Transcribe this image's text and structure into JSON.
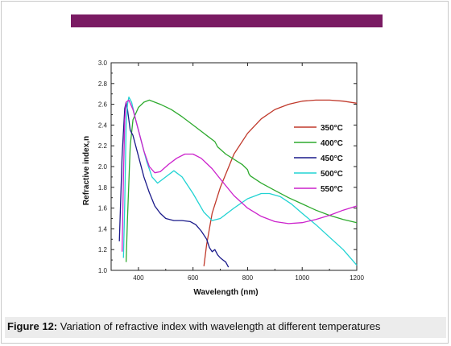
{
  "header": {
    "bar_color": "#7a1b63"
  },
  "caption": {
    "label": "Figure 12:",
    "text": " Variation of refractive index with wavelength at different temperatures"
  },
  "chart_data": {
    "type": "line",
    "xlabel": "Wavelength  (nm)",
    "ylabel": "Refractive index,n",
    "xlim": [
      300,
      1200
    ],
    "ylim": [
      1.0,
      3.0
    ],
    "x_ticks": [
      400,
      600,
      800,
      1000,
      1200
    ],
    "y_ticks": [
      1.0,
      1.2,
      1.4,
      1.6,
      1.8,
      2.0,
      2.2,
      2.4,
      2.6,
      2.8,
      3.0
    ],
    "grid": false,
    "legend_position": "right",
    "series": [
      {
        "name": "350°C",
        "color": "#c0392b",
        "points": [
          [
            640,
            1.04
          ],
          [
            650,
            1.25
          ],
          [
            670,
            1.55
          ],
          [
            700,
            1.8
          ],
          [
            750,
            2.12
          ],
          [
            800,
            2.32
          ],
          [
            850,
            2.46
          ],
          [
            900,
            2.55
          ],
          [
            950,
            2.6
          ],
          [
            1000,
            2.63
          ],
          [
            1050,
            2.64
          ],
          [
            1100,
            2.64
          ],
          [
            1150,
            2.63
          ],
          [
            1200,
            2.61
          ]
        ]
      },
      {
        "name": "400°C",
        "color": "#2eaa2e",
        "points": [
          [
            355,
            1.08
          ],
          [
            360,
            1.5
          ],
          [
            370,
            2.2
          ],
          [
            380,
            2.45
          ],
          [
            400,
            2.57
          ],
          [
            420,
            2.62
          ],
          [
            440,
            2.64
          ],
          [
            480,
            2.6
          ],
          [
            520,
            2.55
          ],
          [
            560,
            2.48
          ],
          [
            600,
            2.4
          ],
          [
            650,
            2.3
          ],
          [
            680,
            2.24
          ],
          [
            690,
            2.19
          ],
          [
            720,
            2.12
          ],
          [
            780,
            2.02
          ],
          [
            800,
            1.97
          ],
          [
            805,
            1.93
          ],
          [
            810,
            1.91
          ],
          [
            850,
            1.84
          ],
          [
            900,
            1.77
          ],
          [
            950,
            1.7
          ],
          [
            1000,
            1.64
          ],
          [
            1050,
            1.58
          ],
          [
            1100,
            1.53
          ],
          [
            1150,
            1.49
          ],
          [
            1200,
            1.46
          ]
        ]
      },
      {
        "name": "450°C",
        "color": "#1a1a8a",
        "points": [
          [
            330,
            1.28
          ],
          [
            340,
            2.1
          ],
          [
            350,
            2.56
          ],
          [
            355,
            2.62
          ],
          [
            360,
            2.55
          ],
          [
            370,
            2.35
          ],
          [
            380,
            2.3
          ],
          [
            400,
            2.1
          ],
          [
            420,
            1.9
          ],
          [
            440,
            1.75
          ],
          [
            460,
            1.62
          ],
          [
            480,
            1.55
          ],
          [
            500,
            1.5
          ],
          [
            530,
            1.48
          ],
          [
            560,
            1.48
          ],
          [
            590,
            1.47
          ],
          [
            610,
            1.44
          ],
          [
            630,
            1.38
          ],
          [
            650,
            1.3
          ],
          [
            660,
            1.22
          ],
          [
            670,
            1.18
          ],
          [
            680,
            1.2
          ],
          [
            690,
            1.15
          ],
          [
            700,
            1.12
          ],
          [
            710,
            1.1
          ],
          [
            720,
            1.08
          ],
          [
            730,
            1.03
          ]
        ]
      },
      {
        "name": "500°C",
        "color": "#22d3d3",
        "points": [
          [
            345,
            1.12
          ],
          [
            350,
            1.65
          ],
          [
            355,
            2.4
          ],
          [
            360,
            2.6
          ],
          [
            365,
            2.67
          ],
          [
            375,
            2.62
          ],
          [
            390,
            2.45
          ],
          [
            410,
            2.25
          ],
          [
            430,
            2.05
          ],
          [
            450,
            1.9
          ],
          [
            470,
            1.84
          ],
          [
            500,
            1.9
          ],
          [
            530,
            1.96
          ],
          [
            560,
            1.9
          ],
          [
            600,
            1.74
          ],
          [
            640,
            1.56
          ],
          [
            670,
            1.48
          ],
          [
            700,
            1.5
          ],
          [
            750,
            1.6
          ],
          [
            800,
            1.69
          ],
          [
            850,
            1.74
          ],
          [
            880,
            1.74
          ],
          [
            920,
            1.71
          ],
          [
            960,
            1.64
          ],
          [
            1000,
            1.55
          ],
          [
            1050,
            1.44
          ],
          [
            1100,
            1.32
          ],
          [
            1150,
            1.2
          ],
          [
            1190,
            1.08
          ],
          [
            1200,
            1.05
          ]
        ]
      },
      {
        "name": "550°C",
        "color": "#cc22cc",
        "points": [
          [
            340,
            1.18
          ],
          [
            345,
            1.9
          ],
          [
            350,
            2.45
          ],
          [
            355,
            2.62
          ],
          [
            365,
            2.64
          ],
          [
            380,
            2.55
          ],
          [
            400,
            2.35
          ],
          [
            420,
            2.15
          ],
          [
            440,
            2.0
          ],
          [
            460,
            1.94
          ],
          [
            480,
            1.95
          ],
          [
            510,
            2.02
          ],
          [
            540,
            2.08
          ],
          [
            570,
            2.12
          ],
          [
            600,
            2.12
          ],
          [
            630,
            2.08
          ],
          [
            670,
            1.98
          ],
          [
            700,
            1.88
          ],
          [
            750,
            1.72
          ],
          [
            800,
            1.6
          ],
          [
            850,
            1.52
          ],
          [
            900,
            1.47
          ],
          [
            950,
            1.45
          ],
          [
            1000,
            1.46
          ],
          [
            1050,
            1.49
          ],
          [
            1100,
            1.53
          ],
          [
            1150,
            1.58
          ],
          [
            1200,
            1.62
          ]
        ]
      }
    ]
  }
}
